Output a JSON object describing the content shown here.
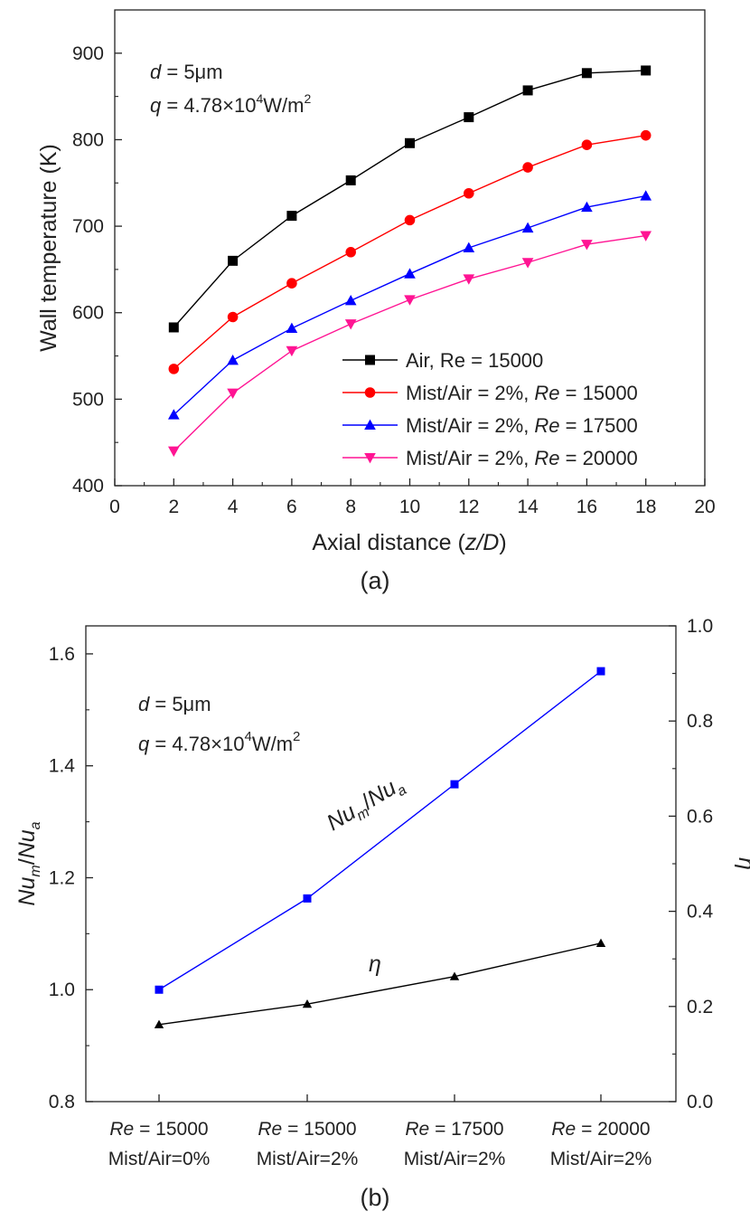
{
  "chart_data": [
    {
      "type": "line",
      "panel_label": "(a)",
      "xlabel": {
        "text": "Axial distance (",
        "italic": "z/D",
        "end": ")"
      },
      "ylabel": "Wall temperature (K)",
      "xlim": [
        0,
        20
      ],
      "ylim": [
        400,
        950
      ],
      "x_ticks": [
        "0",
        "2",
        "4",
        "6",
        "8",
        "10",
        "12",
        "14",
        "16",
        "18",
        "20"
      ],
      "y_ticks": [
        "400",
        "500",
        "600",
        "700",
        "800",
        "900"
      ],
      "annotation": {
        "line1_var": "d",
        "line1_rest": " = 5μm",
        "line2_var": "q",
        "line2_rest": " = 4.78×10",
        "line2_exp": "4",
        "line2_unit": "W/m",
        "line2_unit_exp": "2"
      },
      "grid": false,
      "legend_position": "bottom-right",
      "x": [
        2,
        4,
        6,
        8,
        10,
        12,
        14,
        16,
        18
      ],
      "series": [
        {
          "name_plain": "Air, Re = 15000",
          "name_italic": "",
          "name_tail": "",
          "color": "#000000",
          "marker": "square",
          "values": [
            583,
            660,
            712,
            753,
            796,
            826,
            857,
            877,
            880
          ]
        },
        {
          "name_plain": "Mist/Air = 2%, ",
          "name_italic": "Re",
          "name_tail": " = 15000",
          "color": "#ff0000",
          "marker": "circle",
          "values": [
            535,
            595,
            634,
            670,
            707,
            738,
            768,
            794,
            805
          ]
        },
        {
          "name_plain": "Mist/Air = 2%, ",
          "name_italic": "Re",
          "name_tail": " = 17500",
          "color": "#0000ff",
          "marker": "triangle-up",
          "values": [
            482,
            545,
            582,
            614,
            645,
            675,
            698,
            722,
            735
          ]
        },
        {
          "name_plain": "Mist/Air = 2%, ",
          "name_italic": "Re",
          "name_tail": " = 20000",
          "color": "#ff1493",
          "marker": "triangle-down",
          "values": [
            440,
            507,
            556,
            587,
            615,
            639,
            658,
            679,
            689
          ]
        }
      ]
    },
    {
      "type": "line",
      "panel_label": "(b)",
      "ylabel_left": {
        "base1": "Nu",
        "sub1": "m",
        "sep": "/",
        "base2": "Nu",
        "sub2": "a"
      },
      "ylabel_right": "η",
      "ylim_left": [
        0.8,
        1.65
      ],
      "ylim_right": [
        0.0,
        1.0
      ],
      "y_ticks_left": [
        "0.8",
        "1.0",
        "1.2",
        "1.4",
        "1.6"
      ],
      "y_ticks_right": [
        "0.0",
        "0.2",
        "0.4",
        "0.6",
        "0.8",
        "1.0"
      ],
      "categories": [
        {
          "italic": "Re",
          "rest": " = 15000",
          "line2": "Mist/Air=0%"
        },
        {
          "italic": "Re",
          "rest": " = 15000",
          "line2": "Mist/Air=2%"
        },
        {
          "italic": "Re",
          "rest": " = 17500",
          "line2": "Mist/Air=2%"
        },
        {
          "italic": "Re",
          "rest": " = 20000",
          "line2": "Mist/Air=2%"
        }
      ],
      "annotation": {
        "line1_var": "d",
        "line1_rest": " = 5μm",
        "line2_var": "q",
        "line2_rest": " = 4.78×10",
        "line2_exp": "4",
        "line2_unit": "W/m",
        "line2_unit_exp": "2"
      },
      "grid": false,
      "series": [
        {
          "axis": "left",
          "label": {
            "base1": "Nu",
            "sub1": "m",
            "sep": "/",
            "base2": "Nu",
            "sub2": "a"
          },
          "color": "#0000ff",
          "marker": "square",
          "values": [
            1.0,
            1.163,
            1.367,
            1.569
          ]
        },
        {
          "axis": "right",
          "label_text": "η",
          "color": "#000000",
          "marker": "triangle-up",
          "values": [
            0.162,
            0.205,
            0.263,
            0.333
          ]
        }
      ]
    }
  ]
}
